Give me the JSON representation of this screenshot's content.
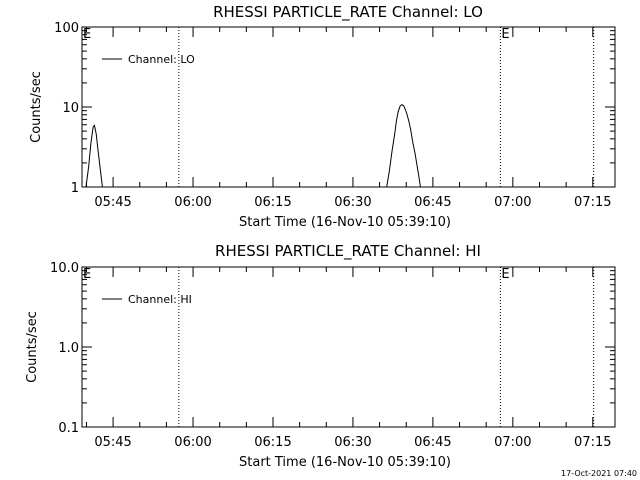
{
  "chart_data": [
    {
      "type": "line",
      "title": "RHESSI PARTICLE_RATE Channel: LO",
      "xlabel": "Start Time (16-Nov-10 05:39:10)",
      "ylabel": "Counts/sec",
      "yscale": "log",
      "ylim": [
        1,
        100
      ],
      "yticks": [
        1,
        10,
        100
      ],
      "ytick_labels": [
        "1",
        "10",
        "100"
      ],
      "xlim": [
        "05:39:10",
        "07:19:10"
      ],
      "xticks": [
        "05:45",
        "06:00",
        "06:15",
        "06:30",
        "06:45",
        "07:00",
        "07:15"
      ],
      "legend": {
        "label": "Channel: LO",
        "placement": "top-left"
      },
      "markers": [
        {
          "time": "05:57:20",
          "label": ""
        },
        {
          "time": "06:57:40",
          "label": "E"
        },
        {
          "time": "07:15:10",
          "label": ""
        }
      ],
      "corner_label": "E",
      "series": [
        {
          "name": "Channel: LO",
          "segments": [
            [
              {
                "t": "05:39:55",
                "y": 1.0
              },
              {
                "t": "05:40:25",
                "y": 1.8
              },
              {
                "t": "05:40:50",
                "y": 3.5
              },
              {
                "t": "05:41:15",
                "y": 5.6
              },
              {
                "t": "05:41:30",
                "y": 5.9
              },
              {
                "t": "05:41:50",
                "y": 4.6
              },
              {
                "t": "05:42:10",
                "y": 2.9
              },
              {
                "t": "05:42:35",
                "y": 1.7
              },
              {
                "t": "05:43:00",
                "y": 1.0
              }
            ],
            [
              {
                "t": "06:36:20",
                "y": 1.0
              },
              {
                "t": "06:36:50",
                "y": 1.6
              },
              {
                "t": "06:37:20",
                "y": 2.8
              },
              {
                "t": "06:37:50",
                "y": 4.6
              },
              {
                "t": "06:38:10",
                "y": 6.8
              },
              {
                "t": "06:38:30",
                "y": 8.8
              },
              {
                "t": "06:38:50",
                "y": 10.2
              },
              {
                "t": "06:39:10",
                "y": 10.7
              },
              {
                "t": "06:39:30",
                "y": 10.4
              },
              {
                "t": "06:39:50",
                "y": 9.3
              },
              {
                "t": "06:40:10",
                "y": 8.0
              },
              {
                "t": "06:40:30",
                "y": 6.6
              },
              {
                "t": "06:40:50",
                "y": 5.2
              },
              {
                "t": "06:41:10",
                "y": 3.8
              },
              {
                "t": "06:41:40",
                "y": 2.6
              },
              {
                "t": "06:42:00",
                "y": 1.9
              },
              {
                "t": "06:42:20",
                "y": 1.4
              },
              {
                "t": "06:42:40",
                "y": 1.0
              }
            ]
          ]
        }
      ]
    },
    {
      "type": "line",
      "title": "RHESSI PARTICLE_RATE Channel: HI",
      "xlabel": "Start Time (16-Nov-10 05:39:10)",
      "ylabel": "Counts/sec",
      "yscale": "log",
      "ylim": [
        0.1,
        10
      ],
      "yticks": [
        0.1,
        1,
        10
      ],
      "ytick_labels": [
        "0.1",
        "1.0",
        "10.0"
      ],
      "xlim": [
        "05:39:10",
        "07:19:10"
      ],
      "xticks": [
        "05:45",
        "06:00",
        "06:15",
        "06:30",
        "06:45",
        "07:00",
        "07:15"
      ],
      "legend": {
        "label": "Channel: HI",
        "placement": "top-left"
      },
      "markers": [
        {
          "time": "05:57:20",
          "label": ""
        },
        {
          "time": "06:57:40",
          "label": "E"
        },
        {
          "time": "07:15:10",
          "label": ""
        }
      ],
      "corner_label": "E",
      "series": [
        {
          "name": "Channel: HI",
          "segments": []
        }
      ]
    }
  ],
  "timestamp": "17-Oct-2021 07:40"
}
